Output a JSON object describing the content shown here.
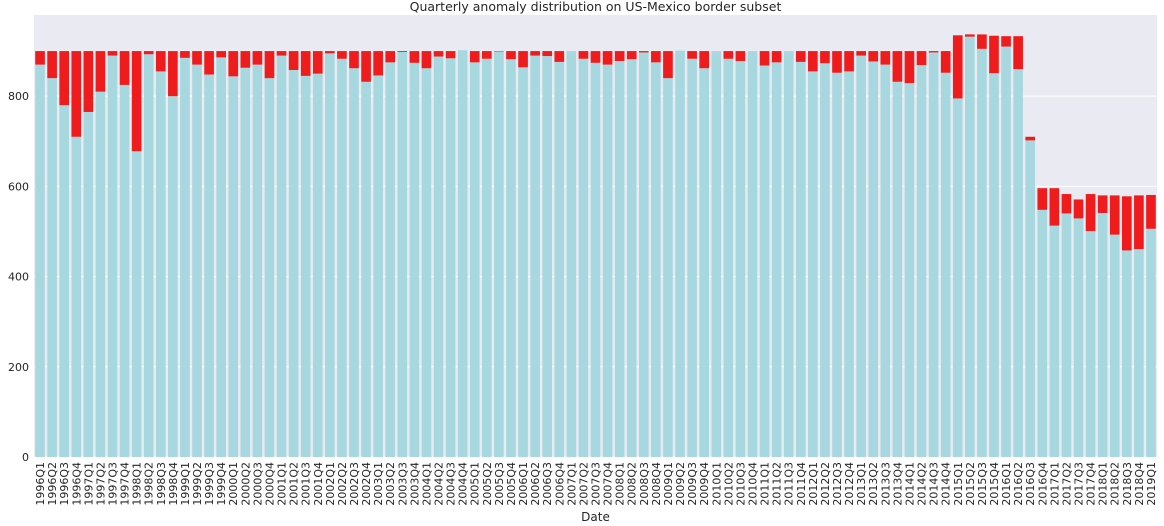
{
  "chart_data": {
    "type": "bar",
    "stacked": true,
    "title": "Quarterly anomaly distribution on US-Mexico border subset",
    "xlabel": "Date",
    "ylabel": "",
    "ylim": [
      0,
      980
    ],
    "yticks": [
      0,
      200,
      400,
      600,
      800
    ],
    "grid": true,
    "colors": {
      "background": "#eaeaf2",
      "grid": "#ffffff",
      "normal": "#a8d8df",
      "anomaly": "#ee1c1c"
    },
    "categories": [
      "1996Q1",
      "1996Q2",
      "1996Q3",
      "1996Q4",
      "1997Q1",
      "1997Q2",
      "1997Q3",
      "1997Q4",
      "1998Q1",
      "1998Q2",
      "1998Q3",
      "1998Q4",
      "1999Q1",
      "1999Q2",
      "1999Q3",
      "1999Q4",
      "2000Q1",
      "2000Q2",
      "2000Q3",
      "2000Q4",
      "2001Q1",
      "2001Q2",
      "2001Q3",
      "2001Q4",
      "2002Q1",
      "2002Q2",
      "2002Q3",
      "2002Q4",
      "2003Q1",
      "2003Q2",
      "2003Q3",
      "2003Q4",
      "2004Q1",
      "2004Q2",
      "2004Q3",
      "2004Q4",
      "2005Q1",
      "2005Q2",
      "2005Q3",
      "2005Q4",
      "2006Q1",
      "2006Q2",
      "2006Q3",
      "2006Q4",
      "2007Q1",
      "2007Q2",
      "2007Q3",
      "2007Q4",
      "2008Q1",
      "2008Q2",
      "2008Q3",
      "2008Q4",
      "2009Q1",
      "2009Q2",
      "2009Q3",
      "2009Q4",
      "2010Q1",
      "2010Q2",
      "2010Q3",
      "2010Q4",
      "2011Q1",
      "2011Q2",
      "2011Q3",
      "2011Q4",
      "2012Q1",
      "2012Q2",
      "2012Q3",
      "2012Q4",
      "2013Q1",
      "2013Q2",
      "2013Q3",
      "2013Q4",
      "2014Q1",
      "2014Q2",
      "2014Q3",
      "2014Q4",
      "2015Q1",
      "2015Q2",
      "2015Q3",
      "2015Q4",
      "2016Q1",
      "2016Q2",
      "2016Q3",
      "2016Q4",
      "2017Q1",
      "2017Q2",
      "2017Q3",
      "2017Q4",
      "2018Q1",
      "2018Q2",
      "2018Q3",
      "2018Q4",
      "2019Q1"
    ],
    "tick_labels": [
      "1996Q1",
      "1996Q2",
      "1996Q3",
      "1996Q4",
      "1997Q1",
      "1997Q2",
      "1997Q3",
      "1997Q4",
      "1998Q1",
      "1998Q2",
      "1998Q3",
      "1998Q4",
      "1999Q1",
      "1999Q2",
      "1999Q3",
      "1999Q4",
      "2000Q1",
      "2000Q2",
      "2000Q3",
      "2000Q4",
      "2001Q1",
      "2001Q2",
      "2001Q3",
      "2001Q4",
      "2002Q1",
      "2002Q2",
      "2002Q3",
      "2002Q4",
      "2003Q1",
      "2003Q2",
      "2003Q3",
      "2003Q4",
      "2004Q1",
      "2004Q2",
      "2004Q3",
      "2004Q4",
      "2005Q1",
      "2005Q2",
      "2005Q3",
      "2005Q4",
      "2006Q1",
      "2006Q2",
      "2006Q3",
      "2006Q4",
      "2007Q1",
      "2007Q2",
      "2007Q3",
      "2007Q4",
      "2008Q1",
      "2008Q2",
      "2008Q3",
      "2008Q4",
      "2009Q1",
      "2009Q2",
      "2009Q3",
      "2009Q4",
      "2010Q1",
      "2010Q2",
      "2010Q3",
      "2010Q4",
      "2011Q1",
      "2011Q2",
      "2011Q3",
      "2011Q4",
      "2012Q1",
      "2012Q2",
      "2012Q3",
      "2012Q4",
      "2013Q1",
      "2013Q2",
      "2013Q3",
      "2013Q4",
      "2014Q1",
      "2014Q2",
      "2014Q3",
      "2014Q4",
      "2015Q1",
      "2015Q2",
      "2015Q3",
      "2015Q4",
      "2016Q1",
      "2016Q2",
      "2016Q3",
      "2016Q4",
      "2017Q1",
      "2017Q2",
      "2017Q3",
      "2017Q4",
      "2018Q1",
      "2018Q2",
      "2018Q3",
      "2018Q4",
      "2019Q1"
    ],
    "series": [
      {
        "role": "normal",
        "values": [
          870,
          840,
          780,
          710,
          765,
          810,
          890,
          825,
          678,
          893,
          855,
          800,
          885,
          870,
          848,
          886,
          844,
          863,
          870,
          840,
          890,
          858,
          845,
          850,
          895,
          883,
          862,
          832,
          846,
          875,
          898,
          874,
          862,
          888,
          884,
          902,
          875,
          883,
          899,
          882,
          864,
          890,
          889,
          876,
          900,
          883,
          874,
          870,
          878,
          882,
          897,
          875,
          840,
          901,
          883,
          862,
          900,
          883,
          878,
          900,
          868,
          875,
          900,
          876,
          855,
          873,
          852,
          855,
          890,
          877,
          870,
          832,
          829,
          869,
          897,
          852,
          795,
          932,
          905,
          851,
          910,
          860,
          702,
          548,
          513,
          540,
          529,
          501,
          541,
          493,
          458,
          461,
          506
        ]
      },
      {
        "role": "anomaly",
        "values": [
          30,
          60,
          120,
          190,
          135,
          90,
          10,
          75,
          222,
          7,
          45,
          100,
          15,
          30,
          52,
          14,
          56,
          37,
          30,
          60,
          10,
          42,
          55,
          50,
          5,
          17,
          38,
          68,
          54,
          25,
          2,
          26,
          38,
          12,
          16,
          0,
          25,
          17,
          1,
          18,
          36,
          10,
          11,
          24,
          0,
          17,
          26,
          30,
          22,
          18,
          3,
          25,
          60,
          0,
          17,
          38,
          0,
          17,
          22,
          0,
          32,
          25,
          0,
          24,
          45,
          27,
          48,
          45,
          10,
          23,
          30,
          68,
          71,
          31,
          3,
          48,
          140,
          5,
          32,
          83,
          23,
          73,
          8,
          48,
          83,
          43,
          42,
          82,
          39,
          87,
          120,
          119,
          75
        ]
      }
    ]
  }
}
